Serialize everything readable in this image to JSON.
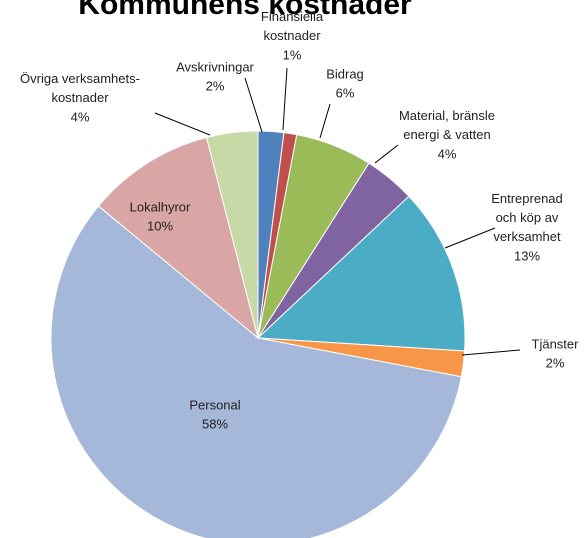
{
  "chart_data": {
    "type": "pie",
    "title": "Kommunens kostnader",
    "categories": [
      "Avskrivningar",
      "Finansiella\nkostnader",
      "Bidrag",
      "Material, bränsle\nenergi & vatten",
      "Entreprenad\noch köp av\nverksamhet",
      "Tjänster",
      "Personal",
      "Lokalhyror",
      "Övriga verksamhets-\nkostnader"
    ],
    "values": [
      2,
      1,
      6,
      4,
      13,
      2,
      58,
      10,
      4
    ],
    "value_labels": [
      "2%",
      "1%",
      "6%",
      "4%",
      "13%",
      "2%",
      "58%",
      "10%",
      "4%"
    ],
    "colors": [
      "#4f81bd",
      "#c0504d",
      "#9bbb59",
      "#8064a2",
      "#4bacc6",
      "#f79646",
      "#a5b8d9",
      "#d9a6a5",
      "#c8d9a8"
    ]
  }
}
